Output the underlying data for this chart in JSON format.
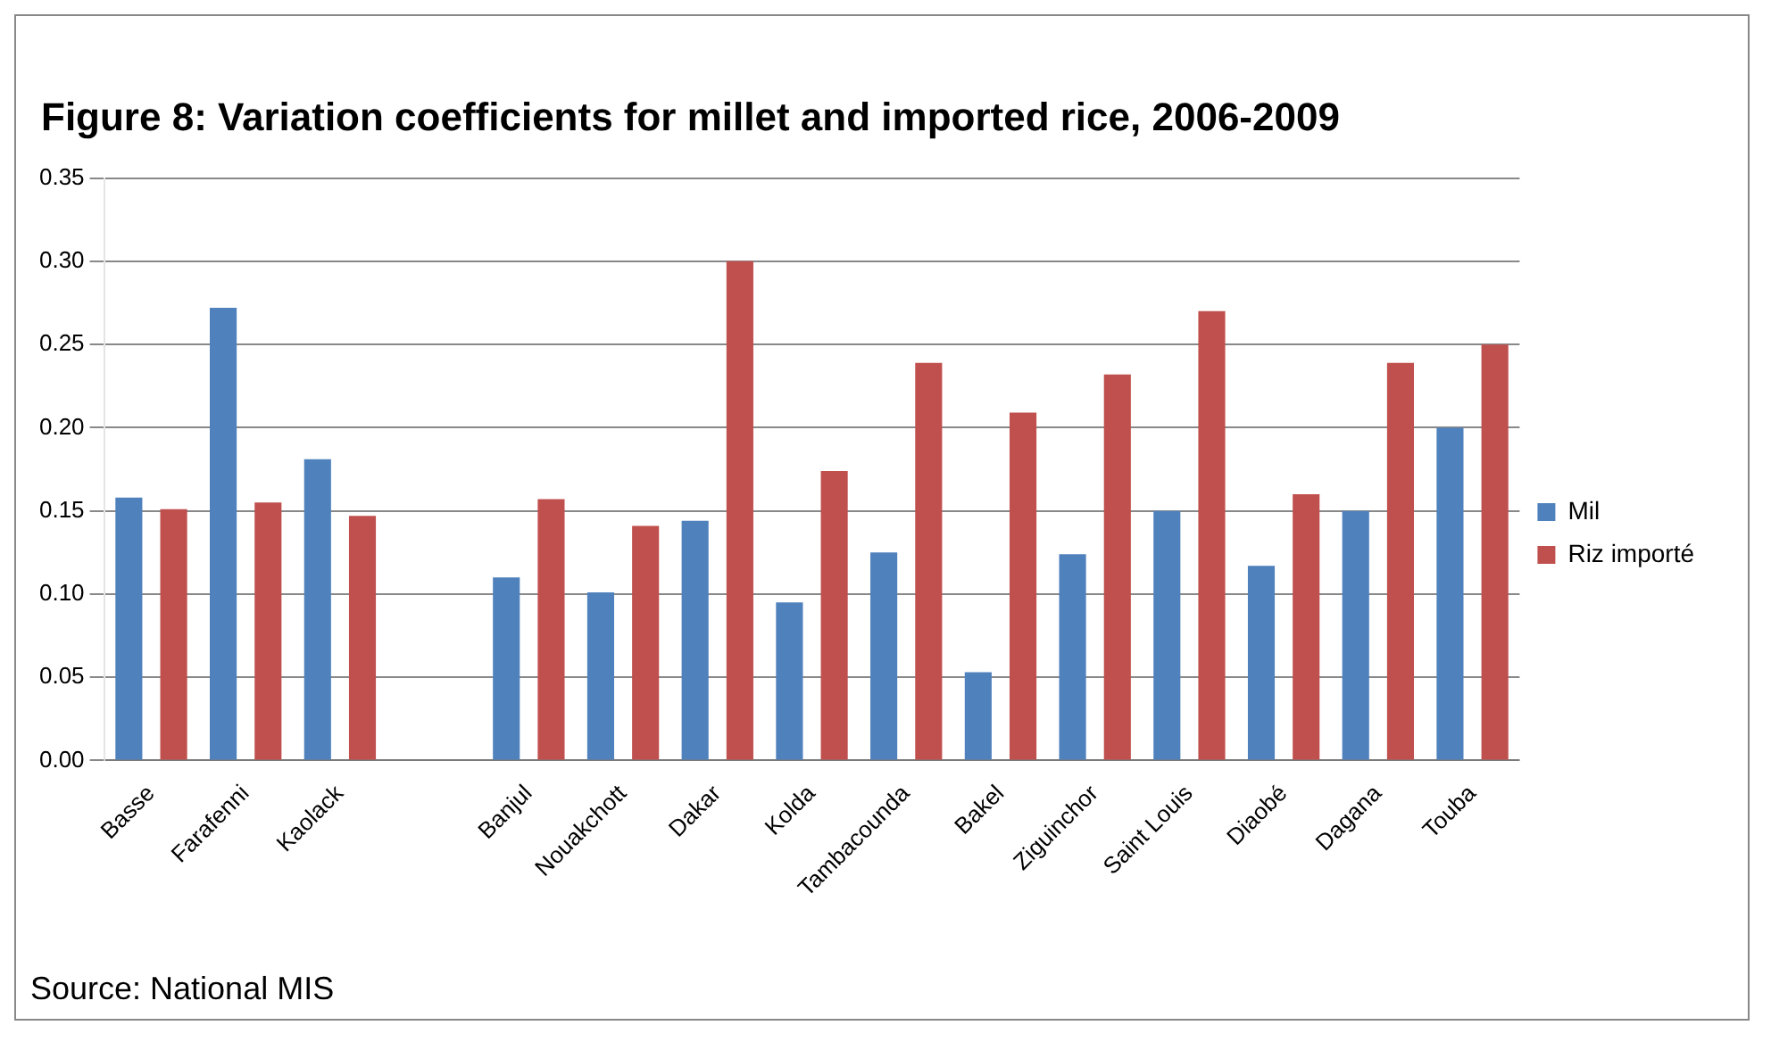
{
  "chart_data": {
    "type": "bar",
    "title": "Figure 8: Variation coefficients for millet and imported rice, 2006-2009",
    "categories": [
      "Basse",
      "Farafenni",
      "Kaolack",
      null,
      "Banjul",
      "Nouakchott",
      "Dakar",
      "Kolda",
      "Tambacounda",
      "Bakel",
      "Ziguinchor",
      "Saint Louis",
      "Diaobé",
      "Dagana",
      "Touba"
    ],
    "series": [
      {
        "name": "Mil",
        "color": "#4f81bd",
        "values": [
          0.158,
          0.272,
          0.181,
          null,
          0.11,
          0.101,
          0.144,
          0.095,
          0.125,
          0.053,
          0.124,
          0.15,
          0.117,
          0.15,
          0.2
        ]
      },
      {
        "name": "Riz importé",
        "color": "#c0504d",
        "values": [
          0.151,
          0.155,
          0.147,
          null,
          0.157,
          0.141,
          0.3,
          0.174,
          0.239,
          0.209,
          0.232,
          0.27,
          0.16,
          0.239,
          0.25
        ]
      }
    ],
    "ylim": [
      0,
      0.35
    ],
    "yticks": [
      {
        "value": 0,
        "label": "0.00"
      },
      {
        "value": 0.05,
        "label": "0.05"
      },
      {
        "value": 0.1,
        "label": "0.10"
      },
      {
        "value": 0.15,
        "label": "0.15"
      },
      {
        "value": 0.2,
        "label": "0.20"
      },
      {
        "value": 0.25,
        "label": "0.25"
      },
      {
        "value": 0.3,
        "label": "0.30"
      },
      {
        "value": 0.35,
        "label": "0.35"
      }
    ],
    "grid": "y",
    "legend": "right",
    "annotations": [
      "Source: National MIS"
    ]
  }
}
